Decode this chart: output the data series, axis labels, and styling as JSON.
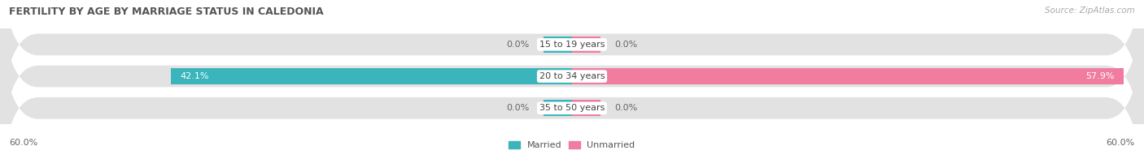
{
  "title": "FERTILITY BY AGE BY MARRIAGE STATUS IN CALEDONIA",
  "source": "Source: ZipAtlas.com",
  "categories": [
    "15 to 19 years",
    "20 to 34 years",
    "35 to 50 years"
  ],
  "married_values": [
    0.0,
    42.1,
    0.0
  ],
  "unmarried_values": [
    0.0,
    57.9,
    0.0
  ],
  "max_value": 60.0,
  "married_color": "#3ab5bc",
  "unmarried_color": "#f07ca0",
  "track_color": "#e2e2e2",
  "row_bg_even": "#f5f5f5",
  "row_bg_odd": "#eaeaea",
  "title_fontsize": 9,
  "source_fontsize": 7.5,
  "bar_label_fontsize": 8,
  "cat_label_fontsize": 8,
  "axis_label_fontsize": 8,
  "legend_married": "Married",
  "legend_unmarried": "Unmarried",
  "stub_val": 3.0
}
